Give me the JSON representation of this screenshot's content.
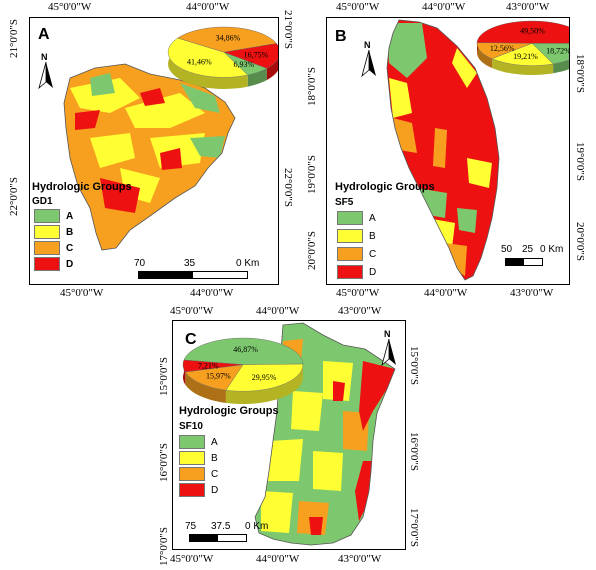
{
  "colors": {
    "A": "#7dc86e",
    "B": "#ffff33",
    "C": "#f7a01f",
    "D": "#ee1111"
  },
  "top_labels": [
    "45°0'0\"W",
    "44°0'0\"W",
    "45°0'0\"W",
    "44°0'0\"W",
    "43°0'0\"W"
  ],
  "panel_a": {
    "letter": "A",
    "coords": {
      "bottom": [
        "45°0'0\"W",
        "44°0'0\"W"
      ],
      "left": [
        "21°0'0\"S",
        "22°0'0\"S"
      ],
      "right": [
        "21°0'0\"S",
        "22°0'0\"S"
      ]
    },
    "legend": {
      "title": "Hydrologic Groups",
      "sub": "GD1",
      "items": [
        "A",
        "B",
        "C",
        "D"
      ]
    },
    "pie": {
      "values": [
        6.93,
        41.46,
        34.86,
        16.75
      ],
      "labels": [
        "6,93%",
        "41,46%",
        "34,86%",
        "16,75%"
      ]
    },
    "scale": [
      "70",
      "35",
      "0 Km"
    ]
  },
  "panel_b": {
    "letter": "B",
    "coords": {
      "bottom": [
        "45°0'0\"W",
        "44°0'0\"W",
        "43°0'0\"W"
      ],
      "left": [
        "18°0'0\"S",
        "19°0'0\"S",
        "20°0'0\"S"
      ],
      "right": [
        "18°0'0\"S",
        "19°0'0\"S",
        "20°0'0\"S"
      ]
    },
    "legend": {
      "title": "Hydrologic Groups",
      "sub": "SF5",
      "items": [
        "A",
        "B",
        "C",
        "D"
      ]
    },
    "pie": {
      "values": [
        18.72,
        19.21,
        12.56,
        49.5
      ],
      "labels": [
        "18,72%",
        "19,21%",
        "12,56%",
        "49,50%"
      ]
    },
    "scale": [
      "50",
      "25",
      "0 Km"
    ]
  },
  "panel_c": {
    "letter": "C",
    "coords": {
      "top": [
        "45°0'0\"W",
        "44°0'0\"W",
        "43°0'0\"W"
      ],
      "bottom": [
        "45°0'0\"W",
        "44°0'0\"W",
        "43°0'0\"W"
      ],
      "left": [
        "15°0'0\"S",
        "16°0'0\"S",
        "17°0'0\"S"
      ],
      "right": [
        "15°0'0\"S",
        "16°0'0\"S",
        "17°0'0\"S"
      ]
    },
    "legend": {
      "title": "Hydrologic Groups",
      "sub": "SF10",
      "items": [
        "A",
        "B",
        "C",
        "D"
      ]
    },
    "pie": {
      "values": [
        46.87,
        29.95,
        15.97,
        7.21
      ],
      "labels": [
        "46,87%",
        "29,95%",
        "15,97%",
        "7,21%"
      ]
    },
    "scale": [
      "75",
      "37.5",
      "0 Km"
    ]
  },
  "north": "N"
}
